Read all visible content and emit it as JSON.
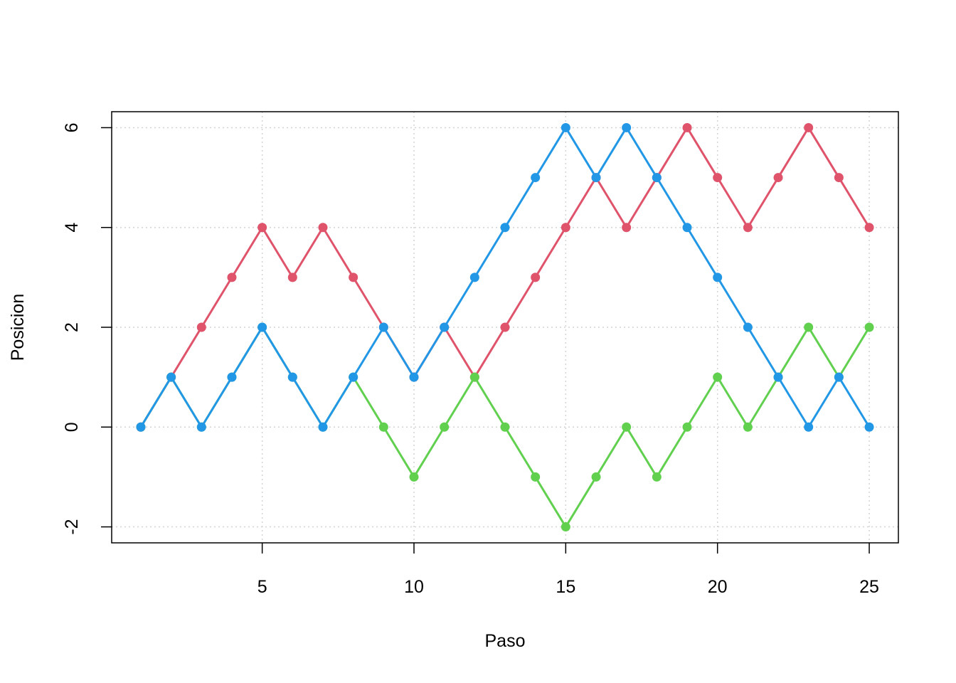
{
  "chart_data": {
    "type": "line",
    "title": "",
    "xlabel": "Paso",
    "ylabel": "Posicion",
    "x": [
      1,
      2,
      3,
      4,
      5,
      6,
      7,
      8,
      9,
      10,
      11,
      12,
      13,
      14,
      15,
      16,
      17,
      18,
      19,
      20,
      21,
      22,
      23,
      24,
      25
    ],
    "xlim": [
      0.04,
      25.96
    ],
    "ylim": [
      -2.32,
      6.32
    ],
    "x_ticks": [
      5,
      10,
      15,
      20,
      25
    ],
    "y_ticks": [
      -2,
      0,
      2,
      4,
      6
    ],
    "grid": true,
    "legend": "none",
    "series": [
      {
        "color": "#DF536B",
        "values": [
          0,
          1,
          2,
          3,
          4,
          3,
          4,
          3,
          2,
          1,
          2,
          1,
          2,
          3,
          4,
          5,
          4,
          5,
          6,
          5,
          4,
          5,
          6,
          5,
          4
        ]
      },
      {
        "color": "#61D04F",
        "values": [
          0,
          1,
          0,
          1,
          2,
          1,
          0,
          1,
          0,
          -1,
          0,
          1,
          0,
          -1,
          -2,
          -1,
          0,
          -1,
          0,
          1,
          0,
          1,
          2,
          1,
          2
        ]
      },
      {
        "color": "#2297E6",
        "values": [
          0,
          1,
          0,
          1,
          2,
          1,
          0,
          1,
          2,
          1,
          2,
          3,
          4,
          5,
          6,
          5,
          6,
          5,
          4,
          3,
          2,
          1,
          0,
          1,
          0
        ]
      }
    ]
  }
}
